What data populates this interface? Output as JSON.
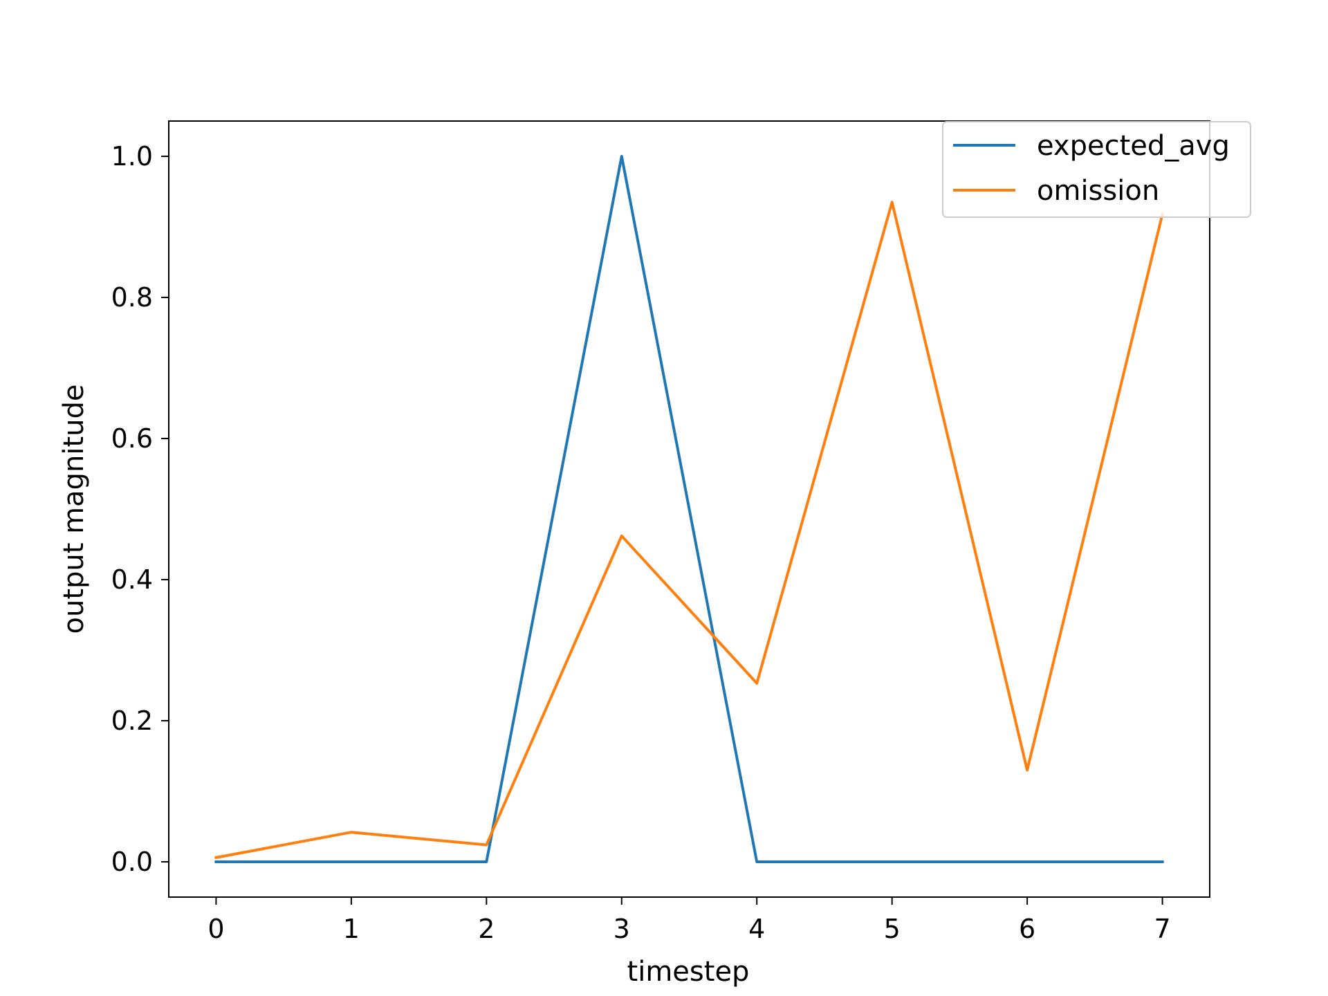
{
  "chart_data": {
    "type": "line",
    "title": "",
    "xlabel": "timestep",
    "ylabel": "output magnitude",
    "x": [
      0,
      1,
      2,
      3,
      4,
      5,
      6,
      7
    ],
    "xlim": [
      -0.35,
      7.35
    ],
    "ylim": [
      -0.05,
      1.05
    ],
    "xticks": [
      0,
      1,
      2,
      3,
      4,
      5,
      6,
      7
    ],
    "xtick_labels": [
      "0",
      "1",
      "2",
      "3",
      "4",
      "5",
      "6",
      "7"
    ],
    "yticks": [
      0.0,
      0.2,
      0.4,
      0.6,
      0.8,
      1.0
    ],
    "ytick_labels": [
      "0.0",
      "0.2",
      "0.4",
      "0.6",
      "0.8",
      "1.0"
    ],
    "grid": false,
    "legend_location": "upper right",
    "series": [
      {
        "name": "expected_avg",
        "color": "#1f77b4",
        "values": [
          0.0,
          0.0,
          0.0,
          1.0,
          0.0,
          0.0,
          0.0,
          0.0
        ]
      },
      {
        "name": "omission",
        "color": "#ff7f0e",
        "values": [
          0.006,
          0.042,
          0.024,
          0.462,
          0.253,
          0.935,
          0.13,
          0.918
        ]
      }
    ]
  }
}
